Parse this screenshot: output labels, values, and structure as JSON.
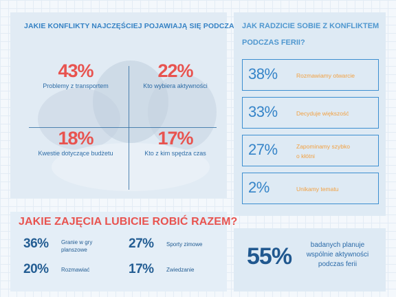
{
  "conflicts": {
    "title": "JAKIE KONFLIKTY NAJCZĘŚCIEJ POJAWIAJĄ SIĘ PODCZAS FERII?",
    "items": [
      {
        "value": "43%",
        "label": "Problemy z transportem"
      },
      {
        "value": "22%",
        "label": "Kto wybiera aktywności"
      },
      {
        "value": "18%",
        "label": "Kwestie dotyczące budżetu"
      },
      {
        "value": "17%",
        "label": "Kto z kim spędza czas"
      }
    ]
  },
  "handling": {
    "title_line1": "JAK RADZICIE SOBIE Z KONFLIKTEM",
    "title_line2": "PODCZAS FERII?",
    "items": [
      {
        "value": "38%",
        "label": "Rozmawiamy otwarcie"
      },
      {
        "value": "33%",
        "label": "Decyduje większość"
      },
      {
        "value": "27%",
        "label_line1": "Zapominamy szybko",
        "label_line2": "o kłótni"
      },
      {
        "value": "2%",
        "label": "Unikamy tematu"
      }
    ]
  },
  "activities": {
    "title": "JAKIE ZAJĘCIA LUBICIE ROBIĆ RAZEM?",
    "items": [
      {
        "value": "36%",
        "label_line1": "Granie w gry",
        "label_line2": "planszowe"
      },
      {
        "value": "27%",
        "label": "Sporty zimowe"
      },
      {
        "value": "20%",
        "label": "Rozmawiać"
      },
      {
        "value": "17%",
        "label": "Zwiedzanie"
      }
    ]
  },
  "plan": {
    "value": "55%",
    "line1": "badanych planuje",
    "line2": "wspólnie aktywności",
    "line3": "podczas ferii"
  },
  "colors": {
    "red": "#e8534f",
    "blue": "#3584c8",
    "dark_blue": "#235d93",
    "orange": "#f2a040"
  }
}
